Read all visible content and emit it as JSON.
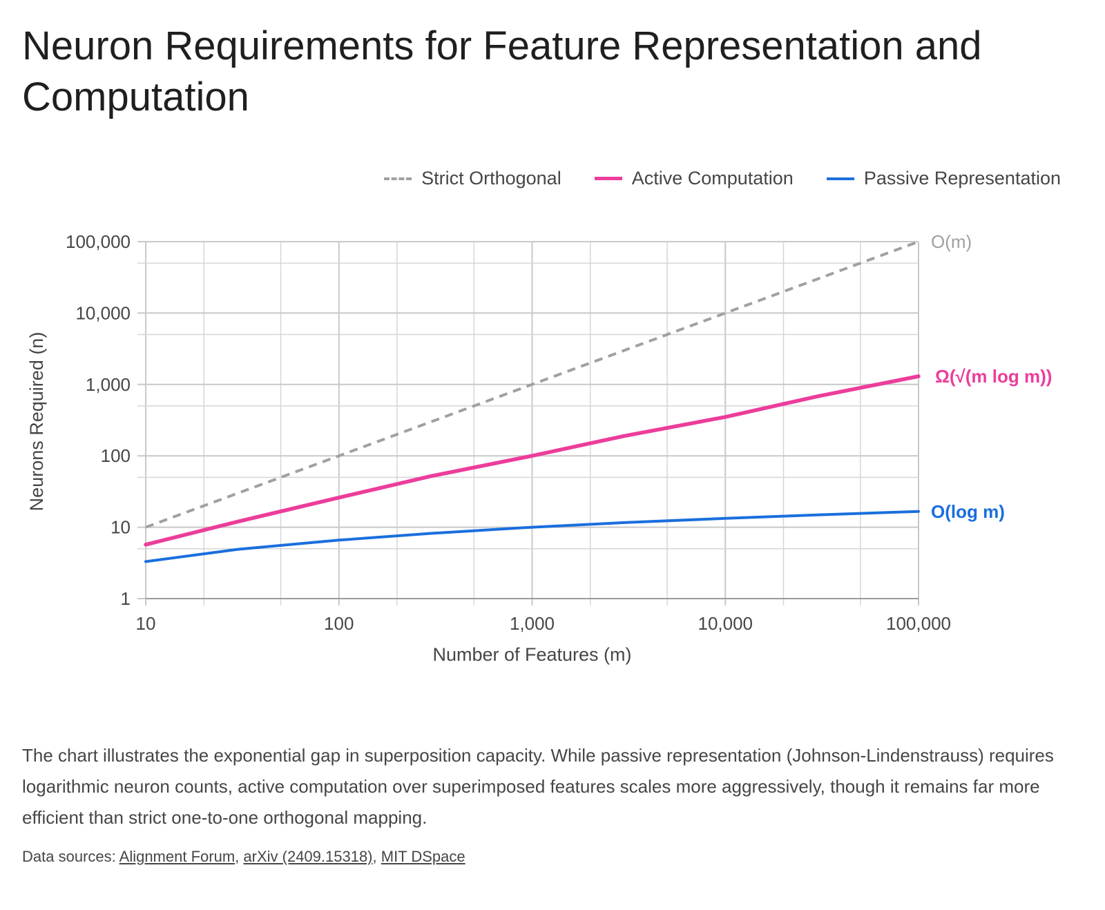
{
  "title": "Neuron Requirements for Feature Representation and Computation",
  "legend": [
    {
      "label": "Strict Orthogonal",
      "color": "#a0a0a0",
      "style": "dashed"
    },
    {
      "label": "Active Computation",
      "color": "#ec3d9b",
      "style": "solid"
    },
    {
      "label": "Passive Representation",
      "color": "#1a6fdd",
      "style": "solid"
    }
  ],
  "chart_data": {
    "type": "line",
    "xlabel": "Number of Features (m)",
    "ylabel": "Neurons Required (n)",
    "x_scale": "log",
    "y_scale": "log",
    "xlim": [
      10,
      100000
    ],
    "ylim": [
      1,
      100000
    ],
    "x_ticks": [
      10,
      100,
      1000,
      10000,
      100000
    ],
    "x_tick_labels": [
      "10",
      "100",
      "1,000",
      "10,000",
      "100,000"
    ],
    "y_ticks": [
      1,
      10,
      100,
      1000,
      10000,
      100000
    ],
    "y_tick_labels": [
      "1",
      "10",
      "100",
      "1,000",
      "10,000",
      "100,000"
    ],
    "grid": true,
    "legend_position": "top-right",
    "x": [
      10,
      30,
      100,
      300,
      1000,
      3000,
      10000,
      30000,
      100000
    ],
    "series": [
      {
        "name": "Strict Orthogonal",
        "color": "#a0a0a0",
        "dashed": true,
        "values": [
          10,
          30,
          100,
          300,
          1000,
          3000,
          10000,
          30000,
          100000
        ],
        "end_label": "O(m)"
      },
      {
        "name": "Active Computation",
        "color": "#ec3d9b",
        "dashed": false,
        "values": [
          5.7,
          12,
          26,
          52,
          100,
          190,
          350,
          680,
          1300
        ],
        "end_label": "Ω(√(m log m))"
      },
      {
        "name": "Passive Representation",
        "color": "#1a6fdd",
        "dashed": false,
        "values": [
          3.3,
          4.9,
          6.6,
          8.2,
          10,
          11.6,
          13.3,
          14.9,
          16.6
        ],
        "end_label": "O(log m)"
      }
    ]
  },
  "caption": "The chart illustrates the exponential gap in superposition capacity. While passive representation (Johnson-Lindenstrauss) requires logarithmic neuron counts, active computation over superimposed features scales more aggressively, though it remains far more efficient than strict one-to-one orthogonal mapping.",
  "sources": {
    "prefix": "Data sources: ",
    "links": [
      "Alignment Forum",
      "arXiv (2409.15318)",
      "MIT DSpace"
    ],
    "separator": ", "
  }
}
